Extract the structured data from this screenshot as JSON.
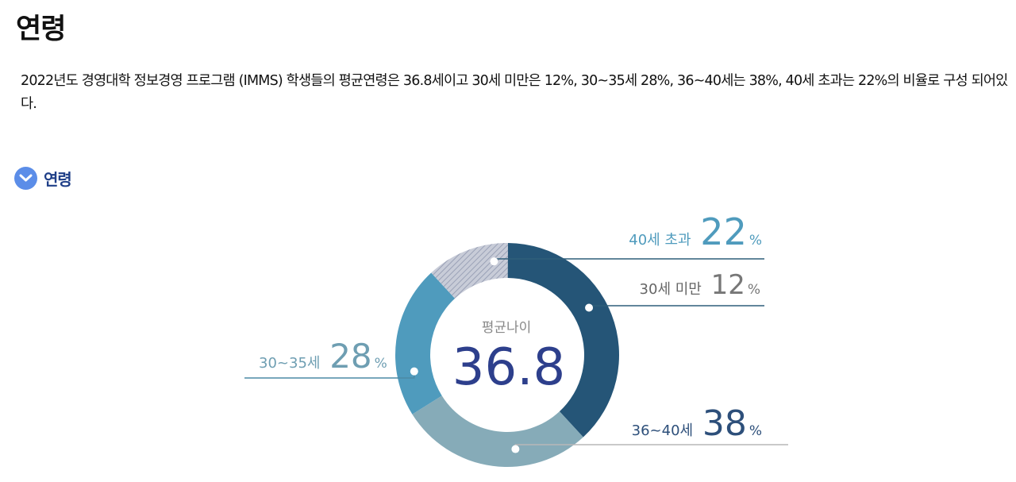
{
  "page": {
    "title": "연령",
    "intro": "2022년도 경영대학 정보경영 프로그램 (IMMS) 학생들의 평균연령은 36.8세이고 30세 미만은 12%, 30~35세 28%, 36~40세는 38%, 40세 초과는 22%의 비율로 구성 되어있다.",
    "section_title": "연령",
    "section_icon": "chevron-down-icon"
  },
  "chart_data": {
    "type": "pie",
    "center_label": "평균나이",
    "center_value": "36.8",
    "unit": "%",
    "categories": [
      "40세 초과",
      "30세 미만",
      "36~40세",
      "30~35세"
    ],
    "values": [
      22,
      12,
      38,
      28
    ],
    "colors": [
      "#4f9bbd",
      "#b9bdcc",
      "#255577",
      "#86abb8"
    ]
  }
}
